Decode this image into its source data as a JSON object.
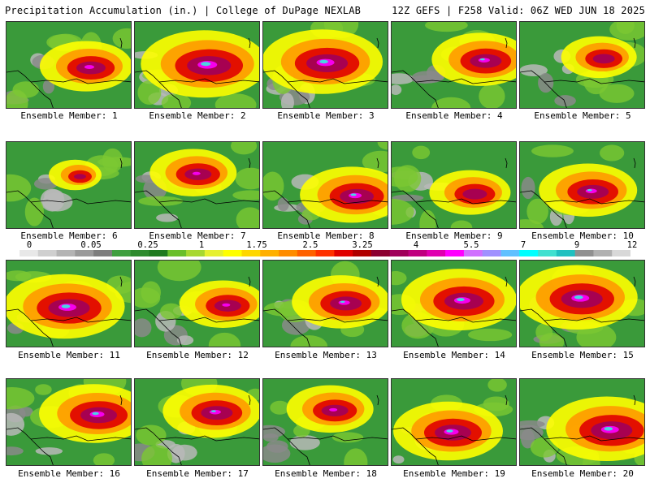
{
  "header": {
    "left_title": "Precipitation Accumulation (in.) | College of DuPage NEXLAB",
    "right_title": "12Z GEFS | F258 Valid: 06Z WED JUN 18 2025"
  },
  "members": [
    {
      "label": "Ensemble Member: 1",
      "intensity": 0.6
    },
    {
      "label": "Ensemble Member: 2",
      "intensity": 0.9
    },
    {
      "label": "Ensemble Member: 3",
      "intensity": 0.85
    },
    {
      "label": "Ensemble Member: 4",
      "intensity": 0.65
    },
    {
      "label": "Ensemble Member: 5",
      "intensity": 0.45
    },
    {
      "label": "Ensemble Member: 6",
      "intensity": 0.25
    },
    {
      "label": "Ensemble Member: 7",
      "intensity": 0.55
    },
    {
      "label": "Ensemble Member: 8",
      "intensity": 0.7
    },
    {
      "label": "Ensemble Member: 9",
      "intensity": 0.5
    },
    {
      "label": "Ensemble Member: 10",
      "intensity": 0.65
    },
    {
      "label": "Ensemble Member: 11",
      "intensity": 0.85
    },
    {
      "label": "Ensemble Member: 12",
      "intensity": 0.55
    },
    {
      "label": "Ensemble Member: 13",
      "intensity": 0.65
    },
    {
      "label": "Ensemble Member: 14",
      "intensity": 0.8
    },
    {
      "label": "Ensemble Member: 15",
      "intensity": 0.85
    },
    {
      "label": "Ensemble Member: 16",
      "intensity": 0.75
    },
    {
      "label": "Ensemble Member: 17",
      "intensity": 0.65
    },
    {
      "label": "Ensemble Member: 18",
      "intensity": 0.55
    },
    {
      "label": "Ensemble Member: 19",
      "intensity": 0.75
    },
    {
      "label": "Ensemble Member: 20",
      "intensity": 0.85
    }
  ],
  "colorbar": {
    "tick_labels": [
      "0",
      "0.05",
      "0.25",
      "1",
      "1.75",
      "2.5",
      "3.25",
      "4",
      "5.5",
      "7",
      "9",
      "12"
    ],
    "colors": [
      "#e8e8e8",
      "#cfcfcf",
      "#b4b4b4",
      "#9a9a9a",
      "#7e7e7e",
      "#3f9f3f",
      "#2e8b2e",
      "#1f7a1f",
      "#6abf2a",
      "#a8d830",
      "#e6f030",
      "#ffff00",
      "#ffd700",
      "#ffb000",
      "#ff8c00",
      "#ff6000",
      "#ff3000",
      "#e00000",
      "#b00000",
      "#8b0030",
      "#a0005a",
      "#c0007f",
      "#e000b0",
      "#ff00ff",
      "#d070ff",
      "#a090ff",
      "#60c0ff",
      "#00ffff",
      "#40e0d0",
      "#20c0c0",
      "#909090",
      "#b0b0b0",
      "#d8d8d8"
    ]
  }
}
